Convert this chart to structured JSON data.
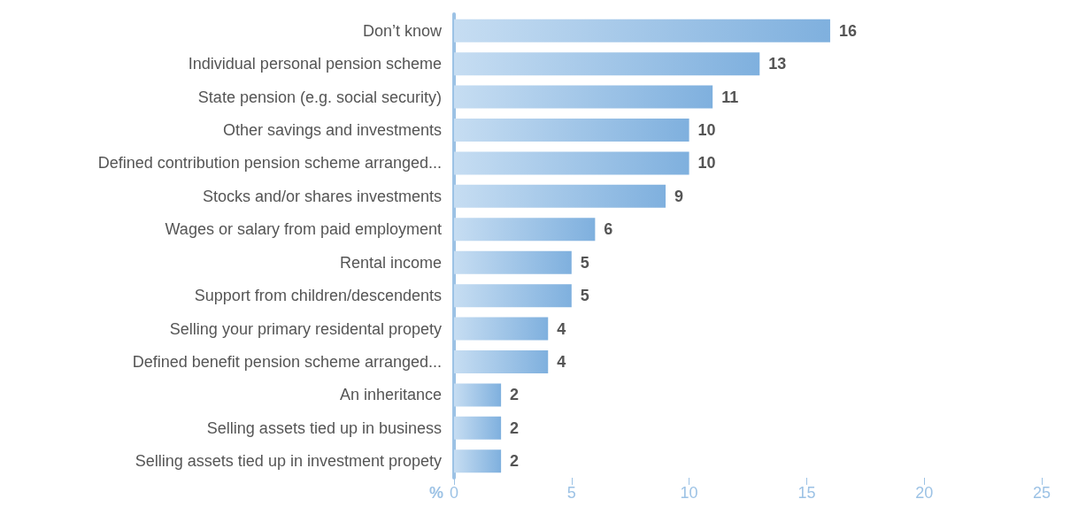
{
  "chart_data": {
    "type": "bar",
    "orientation": "horizontal",
    "xlabel": "%",
    "categories": [
      "Don’t know",
      "Individual personal pension scheme",
      "State pension (e.g. social security)",
      "Other savings and investments",
      "Defined contribution pension scheme arranged...",
      "Stocks and/or shares investments",
      "Wages or salary from paid employment",
      "Rental income",
      "Support from children/descendents",
      "Selling your primary residental propety",
      "Defined benefit pension scheme arranged...",
      "An inheritance",
      "Selling assets tied up in business",
      "Selling assets tied up in investment propety"
    ],
    "values": [
      16,
      13,
      11,
      10,
      10,
      9,
      6,
      5,
      5,
      4,
      4,
      2,
      2,
      2
    ],
    "color": "#7fb0de",
    "data_labels": true,
    "xlim": [
      0,
      25
    ],
    "xticks": [
      0,
      5,
      10,
      15,
      20,
      25
    ],
    "grid": false
  }
}
